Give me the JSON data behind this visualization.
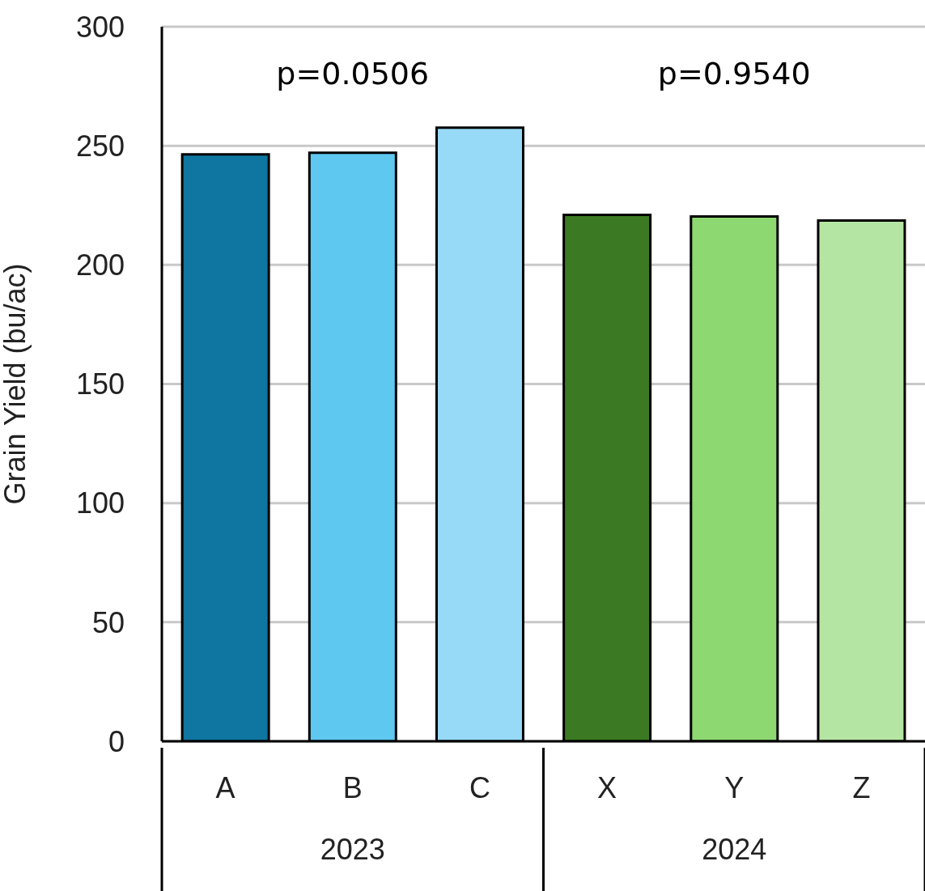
{
  "chart_data": {
    "type": "bar",
    "ylabel": "Grain Yield (bu/ac)",
    "categories": [
      "A",
      "B",
      "C",
      "X",
      "Y",
      "Z"
    ],
    "values": [
      246.4,
      247.1,
      257.6,
      221,
      220.3,
      218.6
    ],
    "colors": [
      "#0e76a0",
      "#5ec8f0",
      "#97daf7",
      "#3b7a22",
      "#8ed872",
      "#b5e5a3"
    ],
    "ylim": [
      0,
      300
    ],
    "yticks": [
      0,
      50,
      100,
      150,
      200,
      250,
      300
    ],
    "grid": "y",
    "legend": false,
    "annotations": [
      "p=0.0506",
      "p=0.9540",
      "2023",
      "2024"
    ]
  }
}
